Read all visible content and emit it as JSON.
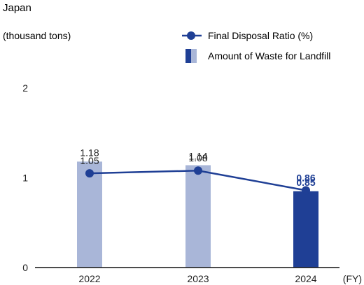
{
  "chart_data": {
    "type": "bar",
    "title": "Japan",
    "unit_label": "(thousand tons)",
    "x_unit": "(FY)",
    "categories": [
      "2022",
      "2023",
      "2024"
    ],
    "ylim": [
      0,
      2
    ],
    "y_ticks": [
      "0",
      "1",
      "2"
    ],
    "grid": false,
    "legend_position": "top-right",
    "series": [
      {
        "name": "Amount of Waste for Landfill",
        "type": "bar",
        "values": [
          1.18,
          1.14,
          0.85
        ],
        "labels": [
          "1.18",
          "1.14",
          "0.85"
        ],
        "colors": [
          "#a9b6d8",
          "#a9b6d8",
          "#1f3f95"
        ]
      },
      {
        "name": "Final Disposal Ratio (%)",
        "type": "line",
        "values": [
          1.05,
          1.08,
          0.86
        ],
        "labels": [
          "1.05",
          "1.08",
          "0.86"
        ],
        "color": "#1f3f95"
      }
    ],
    "highlight_color": "#1f3f95",
    "text_color": "#222222",
    "axis_color": "#111111"
  }
}
